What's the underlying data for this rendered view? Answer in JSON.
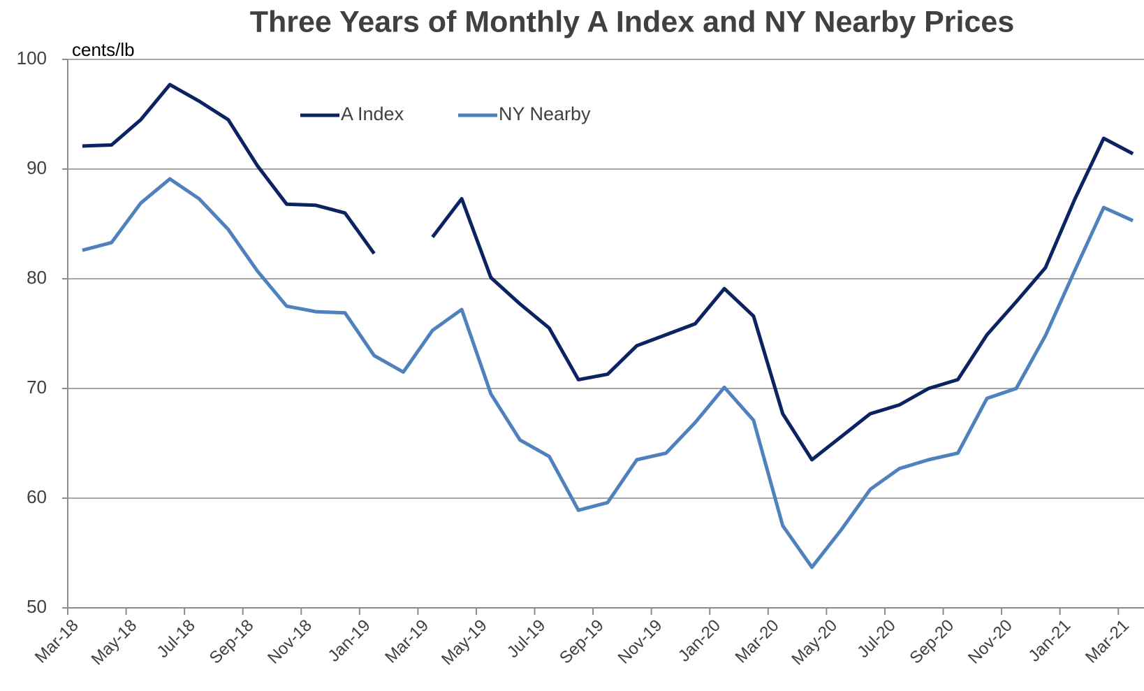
{
  "chart_data": {
    "type": "line",
    "title": "Three Years of Monthly A Index and NY  Nearby Prices",
    "y_unit_label": "cents/lb",
    "categories": [
      "Mar-18",
      null,
      "May-18",
      null,
      "Jul-18",
      null,
      "Sep-18",
      null,
      "Nov-18",
      null,
      "Jan-19",
      null,
      "Mar-19",
      null,
      "May-19",
      null,
      "Jul-19",
      null,
      "Sep-19",
      null,
      "Nov-19",
      null,
      "Jan-20",
      null,
      "Mar-20",
      null,
      "May-20",
      null,
      "Jul-20",
      null,
      "Sep-20",
      null,
      "Nov-20",
      null,
      "Jan-21",
      null,
      "Mar-21"
    ],
    "series": [
      {
        "name": "A Index",
        "color": "#0b2461",
        "values": [
          92.1,
          92.2,
          94.5,
          97.7,
          96.2,
          94.5,
          90.3,
          86.8,
          86.7,
          86.0,
          82.3,
          null,
          83.8,
          87.3,
          80.1,
          77.7,
          75.5,
          70.8,
          71.3,
          73.9,
          74.9,
          75.9,
          79.1,
          76.6,
          67.7,
          63.5,
          65.6,
          67.7,
          68.5,
          70.0,
          70.8,
          74.9,
          77.9,
          81.0,
          87.2,
          92.8,
          91.4
        ]
      },
      {
        "name": "NY Nearby",
        "color": "#4f81bd",
        "values": [
          82.6,
          83.3,
          86.9,
          89.1,
          87.3,
          84.5,
          80.7,
          77.5,
          77.0,
          76.9,
          73.0,
          71.5,
          75.3,
          77.2,
          69.5,
          65.3,
          63.8,
          58.9,
          59.6,
          63.5,
          64.1,
          66.9,
          70.1,
          67.1,
          57.5,
          53.7,
          57.1,
          60.8,
          62.7,
          63.5,
          64.1,
          69.1,
          70.0,
          74.8,
          80.7,
          86.5,
          85.3
        ]
      }
    ],
    "ylim": [
      50,
      100
    ],
    "yticks": [
      50,
      60,
      70,
      80,
      90,
      100
    ],
    "grid": true
  }
}
